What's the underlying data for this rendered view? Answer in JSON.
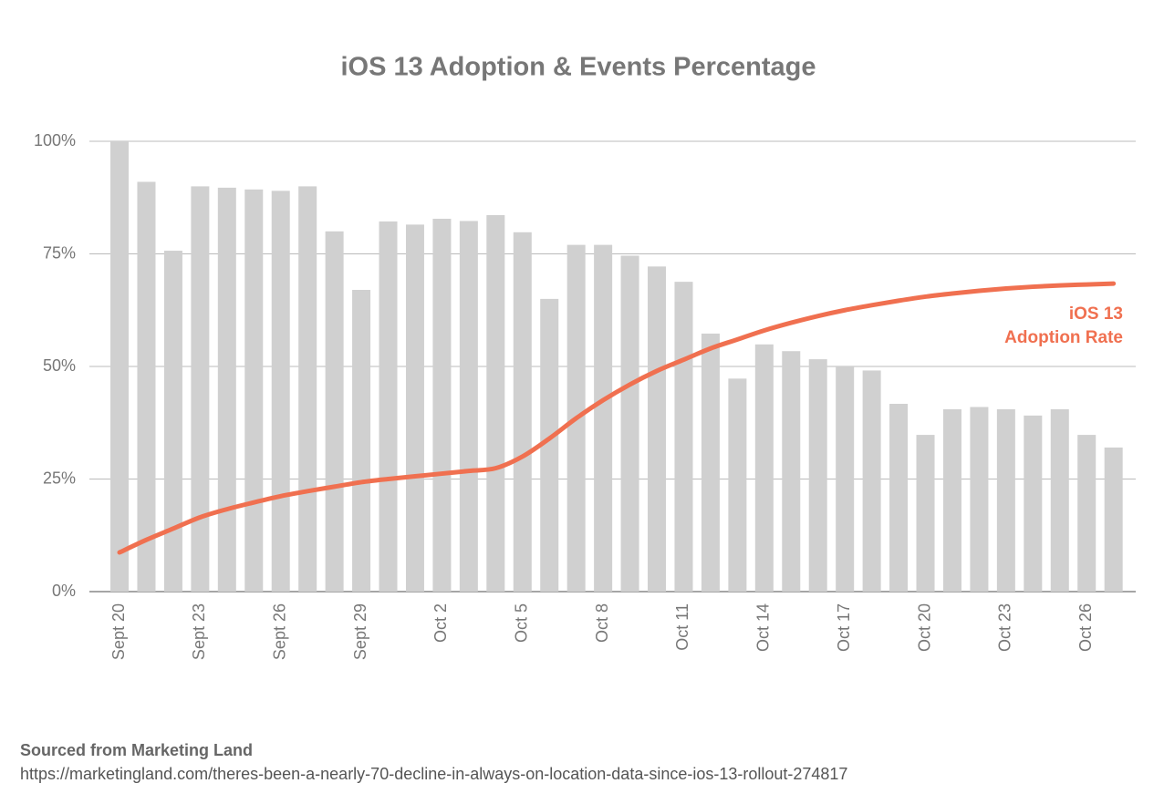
{
  "chart_data": {
    "type": "bar-line",
    "title": "iOS 13 Adoption & Events Percentage",
    "categories": [
      "Sept 20",
      null,
      null,
      "Sept 23",
      null,
      null,
      "Sept 26",
      null,
      null,
      "Sept 29",
      null,
      null,
      "Oct 2",
      null,
      null,
      "Oct 5",
      null,
      null,
      "Oct 8",
      null,
      null,
      "Oct 11",
      null,
      null,
      "Oct 14",
      null,
      null,
      "Oct 17",
      null,
      null,
      "Oct 20",
      null,
      null,
      "Oct 23",
      null,
      null,
      "Oct 26",
      null
    ],
    "series": [
      {
        "name": "Events Percentage",
        "type": "bar",
        "color": "#d0d0d0",
        "values": [
          100,
          91,
          75.7,
          90,
          89.7,
          89.3,
          89,
          90,
          80,
          67,
          82.2,
          81.5,
          82.8,
          82.3,
          83.6,
          79.8,
          65,
          77,
          77,
          74.6,
          72.2,
          68.8,
          57.3,
          47.3,
          54.9,
          53.4,
          51.6,
          50,
          49.1,
          41.7,
          34.8,
          40.5,
          41,
          40.5,
          39.1,
          40.5,
          34.8,
          32
        ]
      },
      {
        "name": "iOS 13 Adoption Rate",
        "type": "line",
        "color": "#f07050",
        "values": [
          8.7,
          11.5,
          14,
          16.5,
          18.3,
          19.8,
          21.2,
          22.3,
          23.3,
          24.3,
          25,
          25.6,
          26.2,
          26.8,
          27.4,
          30,
          34,
          38.5,
          42.5,
          46,
          49,
          51.5,
          54,
          56,
          58,
          59.7,
          61.2,
          62.5,
          63.6,
          64.6,
          65.5,
          66.2,
          66.8,
          67.3,
          67.7,
          68,
          68.2,
          68.4
        ]
      }
    ],
    "annotation": [
      "iOS 13",
      "Adoption Rate"
    ],
    "ylim": [
      0,
      100
    ],
    "yticks": [
      {
        "value": 0,
        "label": "0%"
      },
      {
        "value": 25,
        "label": "25%"
      },
      {
        "value": 50,
        "label": "50%"
      },
      {
        "value": 75,
        "label": "75%"
      },
      {
        "value": 100,
        "label": "100%"
      }
    ],
    "grid": true,
    "source": "Sourced from Marketing Land",
    "url": "https://marketingland.com/theres-been-a-nearly-70-decline-in-always-on-location-data-since-ios-13-rollout-274817"
  }
}
